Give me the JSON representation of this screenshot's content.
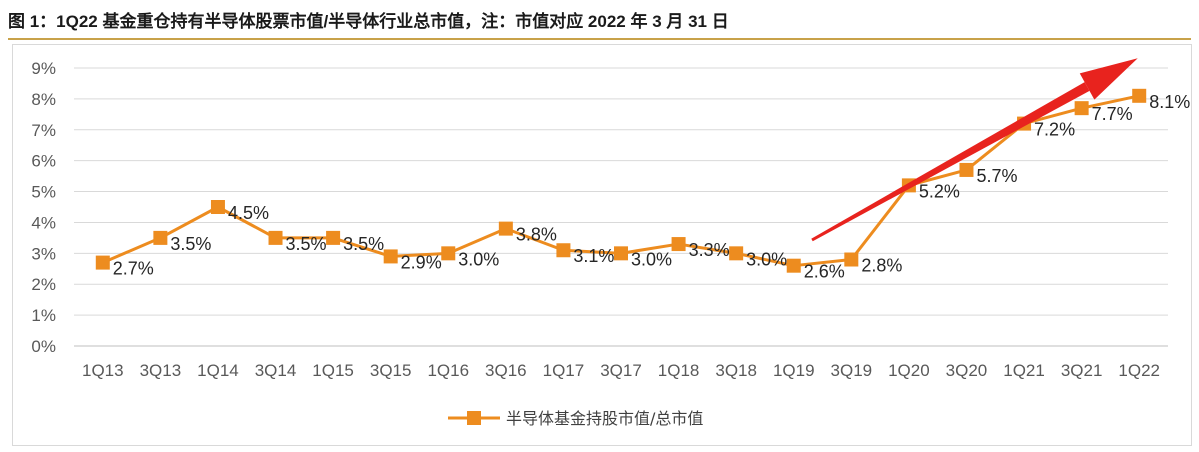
{
  "figure": {
    "title": "图 1：1Q22 基金重仓持有半导体股票市值/半导体行业总市值，注：市值对应 2022 年 3 月 31 日"
  },
  "chart_data": {
    "type": "line",
    "categories": [
      "1Q13",
      "3Q13",
      "1Q14",
      "3Q14",
      "1Q15",
      "3Q15",
      "1Q16",
      "3Q16",
      "1Q17",
      "3Q17",
      "1Q18",
      "3Q18",
      "1Q19",
      "3Q19",
      "1Q20",
      "3Q20",
      "1Q21",
      "3Q21",
      "1Q22"
    ],
    "series": [
      {
        "name": "半导体基金持股市值/总市值",
        "color": "#ed8c1f",
        "values": [
          2.7,
          3.5,
          4.5,
          3.5,
          3.5,
          2.9,
          3.0,
          3.8,
          3.1,
          3.0,
          3.3,
          3.0,
          2.6,
          2.8,
          5.2,
          5.7,
          7.2,
          7.7,
          8.1
        ],
        "labels": [
          "2.7%",
          "3.5%",
          "4.5%",
          "3.5%",
          "3.5%",
          "2.9%",
          "3.0%",
          "3.8%",
          "3.1%",
          "3.0%",
          "3.3%",
          "3.0%",
          "2.6%",
          "2.8%",
          "5.2%",
          "5.7%",
          "7.2%",
          "7.7%",
          "8.1%"
        ]
      }
    ],
    "y_ticks": [
      "0%",
      "1%",
      "2%",
      "3%",
      "4%",
      "5%",
      "6%",
      "7%",
      "8%",
      "9%"
    ],
    "ylim": [
      0,
      9
    ],
    "grid": true,
    "legend": "bottom-center",
    "annotation": {
      "type": "trend-arrow",
      "color": "#e8231e"
    }
  }
}
